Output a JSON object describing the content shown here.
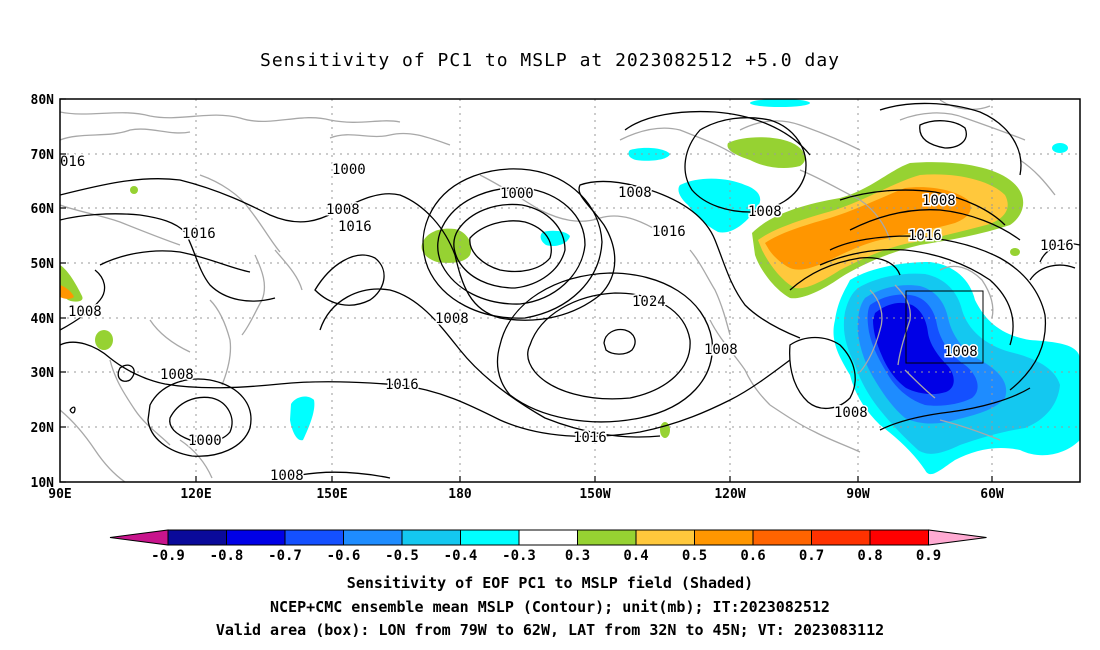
{
  "title": "Sensitivity of PC1 to MSLP at 2023082512 +5.0 day",
  "map": {
    "lat_labels": [
      "80N",
      "70N",
      "60N",
      "50N",
      "40N",
      "30N",
      "20N",
      "10N"
    ],
    "lon_labels": [
      "90E",
      "120E",
      "150E",
      "180",
      "150W",
      "120W",
      "90W",
      "60W"
    ],
    "contour_labels": [
      "1000",
      "1000",
      "1008",
      "1016",
      "1016",
      "1008",
      "1016",
      "1008",
      "1024",
      "1008",
      "1016",
      "1016",
      "1008",
      "1008",
      "1008",
      "1016",
      "1008",
      "1000",
      "1008",
      "1008",
      "016",
      "1008"
    ]
  },
  "colorbar": {
    "labels": [
      "-0.9",
      "-0.8",
      "-0.7",
      "-0.6",
      "-0.5",
      "-0.4",
      "-0.3",
      "0.3",
      "0.4",
      "0.5",
      "0.6",
      "0.7",
      "0.8",
      "0.9"
    ],
    "colors": [
      "#0a0a9a",
      "#0000e6",
      "#1450ff",
      "#1e8cff",
      "#14c8f0",
      "#00ffff",
      "#ffffff",
      "#96d232",
      "#ffc83c",
      "#ff9600",
      "#ff6400",
      "#ff3200",
      "#ff0000"
    ],
    "low_end_color": "#c8148c",
    "high_end_color": "#ffaad2"
  },
  "footer": {
    "line1": "Sensitivity of EOF PC1 to MSLP field (Shaded)",
    "line2": "NCEP+CMC ensemble mean MSLP (Contour); unit(mb); IT:2023082512",
    "line3": "Valid area (box): LON from 79W to 62W, LAT from 32N to 45N; VT: 2023083112"
  }
}
